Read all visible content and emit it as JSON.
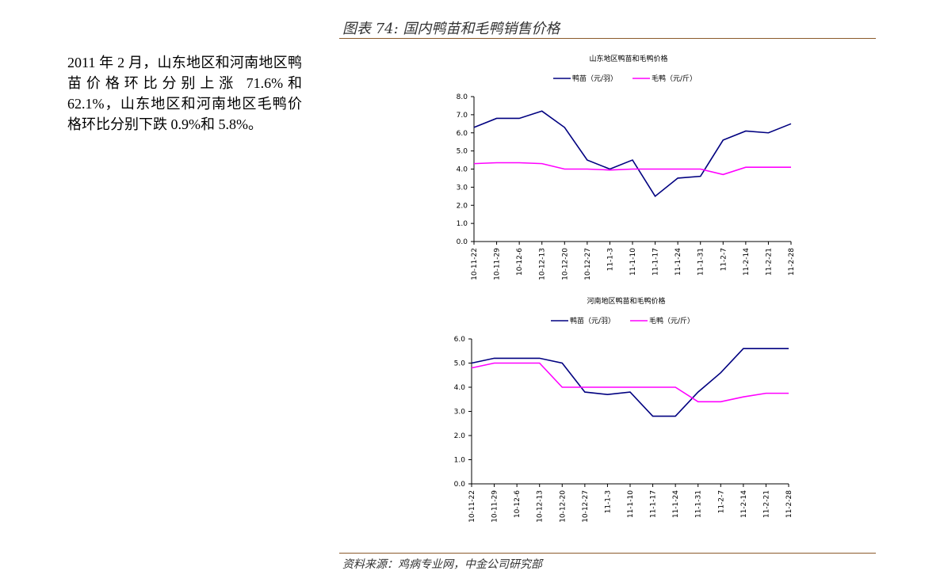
{
  "header": {
    "title": "图表 74: 国内鸭苗和毛鸭销售价格"
  },
  "body": {
    "text": "2011 年 2 月，山东地区和河南地区鸭苗价格环比分别上涨 71.6%和 62.1%，山东地区和河南地区毛鸭价格环比分别下跌 0.9%和 5.8%。"
  },
  "chart_data": [
    {
      "type": "line",
      "title": "山东地区鸭苗和毛鸭价格",
      "categories": [
        "10-11-22",
        "10-11-29",
        "10-12-6",
        "10-12-13",
        "10-12-20",
        "10-12-27",
        "11-1-3",
        "11-1-10",
        "11-1-17",
        "11-1-24",
        "11-1-31",
        "11-2-7",
        "11-2-14",
        "11-2-21",
        "11-2-28"
      ],
      "series": [
        {
          "name": "鸭苗（元/羽）",
          "color": "#000080",
          "values": [
            6.3,
            6.8,
            6.8,
            7.2,
            6.3,
            4.5,
            4.0,
            4.5,
            2.5,
            3.5,
            3.6,
            5.6,
            6.1,
            6.0,
            6.5
          ]
        },
        {
          "name": "毛鸭（元/斤）",
          "color": "#ff00ff",
          "values": [
            4.3,
            4.35,
            4.35,
            4.3,
            4.0,
            4.0,
            3.95,
            4.0,
            4.0,
            4.0,
            4.0,
            3.7,
            4.1,
            4.1,
            4.1
          ]
        }
      ],
      "ylim": [
        0,
        8
      ],
      "yticks": [
        {
          "value": 0,
          "label": "0.0"
        },
        {
          "value": 1,
          "label": "1.0"
        },
        {
          "value": 2,
          "label": "2.0"
        },
        {
          "value": 3,
          "label": "3.0"
        },
        {
          "value": 4,
          "label": "4.0"
        },
        {
          "value": 5,
          "label": "5.0"
        },
        {
          "value": 6,
          "label": "6.0"
        },
        {
          "value": 7,
          "label": "7.0"
        },
        {
          "value": 8,
          "label": "8.0"
        }
      ]
    },
    {
      "type": "line",
      "title": "河南地区鸭苗和毛鸭价格",
      "categories": [
        "10-11-22",
        "10-11-29",
        "10-12-6",
        "10-12-13",
        "10-12-20",
        "10-12-27",
        "11-1-3",
        "11-1-10",
        "11-1-17",
        "11-1-24",
        "11-1-31",
        "11-2-7",
        "11-2-14",
        "11-2-21",
        "11-2-28"
      ],
      "series": [
        {
          "name": "鸭苗（元/羽）",
          "color": "#000080",
          "values": [
            5.0,
            5.2,
            5.2,
            5.2,
            5.0,
            3.8,
            3.7,
            3.8,
            2.8,
            2.8,
            3.8,
            4.6,
            5.6,
            5.6,
            5.6
          ]
        },
        {
          "name": "毛鸭（元/斤）",
          "color": "#ff00ff",
          "values": [
            4.8,
            5.0,
            5.0,
            5.0,
            4.0,
            4.0,
            4.0,
            4.0,
            4.0,
            4.0,
            3.4,
            3.4,
            3.6,
            3.75,
            3.75
          ]
        }
      ],
      "ylim": [
        0,
        6
      ],
      "yticks": [
        {
          "value": 0,
          "label": "0.0"
        },
        {
          "value": 1,
          "label": "1.0"
        },
        {
          "value": 2,
          "label": "2.0"
        },
        {
          "value": 3,
          "label": "3.0"
        },
        {
          "value": 4,
          "label": "4.0"
        },
        {
          "value": 5,
          "label": "5.0"
        },
        {
          "value": 6,
          "label": "6.0"
        }
      ]
    }
  ],
  "footer": {
    "source": "资料来源：鸡病专业网，中金公司研究部"
  }
}
